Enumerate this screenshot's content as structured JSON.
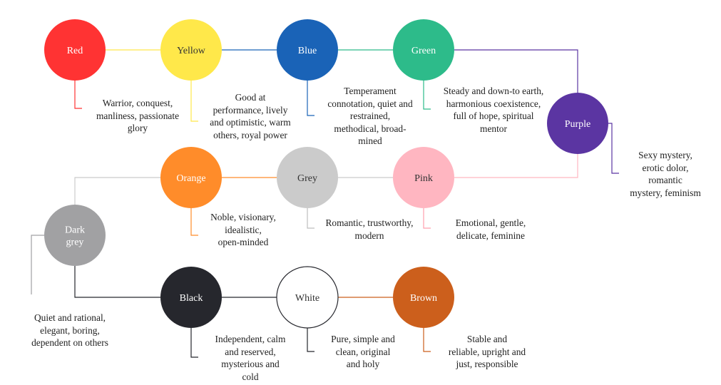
{
  "nodes": [
    {
      "id": "red",
      "label": "Red",
      "fill": "#ff3333",
      "text_color": "#ffffff",
      "description": "Warrior, conquest,\nmanliness, passionate\nglory"
    },
    {
      "id": "yellow",
      "label": "Yellow",
      "fill": "#ffe84a",
      "text_color": "#333333",
      "description": "Good at\nperformance, lively\nand optimistic, warm\nothers, royal power"
    },
    {
      "id": "blue",
      "label": "Blue",
      "fill": "#1a63b7",
      "text_color": "#ffffff",
      "description": "Temperament\nconnotation, quiet and\nrestrained,\nmethodical, broad-\nmined"
    },
    {
      "id": "green",
      "label": "Green",
      "fill": "#2dbb8a",
      "text_color": "#ffffff",
      "description": "Steady and down-to earth,\nharmonious coexistence,\nfull of hope, spiritual\nmentor"
    },
    {
      "id": "purple",
      "label": "Purple",
      "fill": "#5b35a2",
      "text_color": "#ffffff",
      "description": "Sexy mystery,\nerotic dolor,\nromantic\nmystery, feminism"
    },
    {
      "id": "orange",
      "label": "Orange",
      "fill": "#ff8c2a",
      "text_color": "#ffffff",
      "description": "Noble, visionary,\nidealistic,\nopen-minded"
    },
    {
      "id": "grey",
      "label": "Grey",
      "fill": "#cbcbcb",
      "text_color": "#333333",
      "description": "Romantic, trustworthy,\nmodern"
    },
    {
      "id": "pink",
      "label": "Pink",
      "fill": "#ffb6c1",
      "text_color": "#333333",
      "description": "Emotional, gentle,\ndelicate, feminine"
    },
    {
      "id": "darkgrey",
      "label": "Dark\ngrey",
      "fill": "#a1a1a3",
      "text_color": "#ffffff",
      "description": "Quiet and rational,\nelegant, boring,\ndependent on others"
    },
    {
      "id": "black",
      "label": "Black",
      "fill": "#26272d",
      "text_color": "#ffffff",
      "description": "Independent, calm\nand reserved,\nmysterious and\ncold"
    },
    {
      "id": "white",
      "label": "White",
      "fill": "#ffffff",
      "text_color": "#333333",
      "description": "Pure, simple and\nclean, original\nand holy"
    },
    {
      "id": "brown",
      "label": "Brown",
      "fill": "#cc5f1c",
      "text_color": "#ffffff",
      "description": "Stable and\nreliable, upright and\njust, responsible"
    }
  ]
}
